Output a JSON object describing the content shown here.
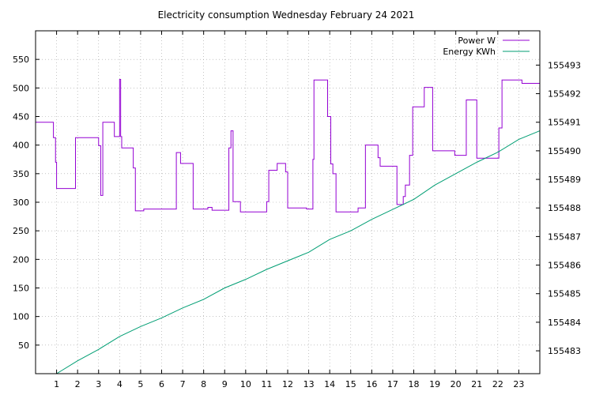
{
  "chart_data": {
    "type": "line",
    "title": "Electricity consumption Wednesday February 24 2021",
    "xlabel": "",
    "ylabel": "",
    "y2label": "",
    "xlim": [
      0,
      24
    ],
    "ylim": [
      0,
      600
    ],
    "y2lim": [
      155482.2,
      155494.2
    ],
    "grid": true,
    "legend": "top-right",
    "colors": {
      "power": "#9400d3",
      "energy": "#009e73"
    },
    "x_ticks": [
      1,
      2,
      3,
      4,
      5,
      6,
      7,
      8,
      9,
      10,
      11,
      12,
      13,
      14,
      15,
      16,
      17,
      18,
      19,
      20,
      21,
      22,
      23
    ],
    "y_ticks": [
      50,
      100,
      150,
      200,
      250,
      300,
      350,
      400,
      450,
      500,
      550
    ],
    "y2_ticks": [
      155483,
      155484,
      155485,
      155486,
      155487,
      155488,
      155489,
      155490,
      155491,
      155492,
      155493
    ],
    "series": [
      {
        "name": "Power W",
        "axis": "left",
        "step": true,
        "x": [
          0,
          0.85,
          0.95,
          1.0,
          1.8,
          1.9,
          2.3,
          3.0,
          3.1,
          3.2,
          3.65,
          3.75,
          4.0,
          4.05,
          4.1,
          4.2,
          4.65,
          4.75,
          5.0,
          5.15,
          6.2,
          6.7,
          6.9,
          7.5,
          8.2,
          8.4,
          9.2,
          9.3,
          9.4,
          9.75,
          11.0,
          11.1,
          11.5,
          11.9,
          12.0,
          12.5,
          12.9,
          13.2,
          13.25,
          13.8,
          13.9,
          14.05,
          14.15,
          14.3,
          15.2,
          15.35,
          15.7,
          16.3,
          16.4,
          17.2,
          17.5,
          17.6,
          17.8,
          17.95,
          18.5,
          18.9,
          19.8,
          19.95,
          20.5,
          20.6,
          21.0,
          22.0,
          22.05,
          22.2,
          23.05,
          23.15
        ],
        "values": [
          440,
          413,
          370,
          324,
          324,
          413,
          413,
          399,
          312,
          440,
          440,
          415,
          515,
          415,
          395,
          395,
          360,
          285,
          285,
          288,
          288,
          387,
          368,
          288,
          291,
          286,
          395,
          425,
          301,
          283,
          301,
          356,
          368,
          353,
          290,
          290,
          288,
          375,
          514,
          514,
          450,
          367,
          350,
          283,
          283,
          290,
          400,
          378,
          363,
          296,
          310,
          330,
          382,
          467,
          501,
          390,
          390,
          382,
          479,
          479,
          377,
          377,
          430,
          514,
          514,
          508
        ]
      },
      {
        "name": "Energy KWh",
        "axis": "right",
        "step": false,
        "x": [
          1,
          2,
          3,
          4,
          5,
          6,
          7,
          8,
          9,
          10,
          11,
          12,
          13,
          14,
          15,
          16,
          17,
          18,
          19,
          20,
          21,
          22,
          23,
          24
        ],
        "values": [
          155482.2,
          155482.65,
          155483.05,
          155483.5,
          155483.85,
          155484.15,
          155484.5,
          155484.8,
          155485.2,
          155485.5,
          155485.85,
          155486.15,
          155486.45,
          155486.9,
          155487.2,
          155487.6,
          155487.95,
          155488.3,
          155488.8,
          155489.2,
          155489.6,
          155489.95,
          155490.4,
          155490.7
        ]
      }
    ]
  }
}
